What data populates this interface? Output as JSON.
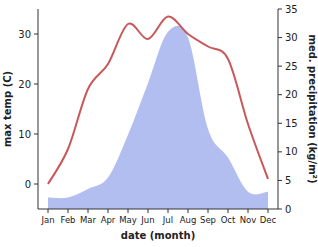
{
  "chart_data": {
    "type": "line",
    "categories": [
      "Jan",
      "Feb",
      "Mar",
      "Apr",
      "May",
      "Jun",
      "Jul",
      "Aug",
      "Sep",
      "Oct",
      "Nov",
      "Dec"
    ],
    "x_label": "date (month)",
    "y_label": "max temp (C)",
    "y2_label": "med. precipitation (kg/m²)",
    "series": [
      {
        "type": "area",
        "axis": "y2",
        "color": "#b3bef0",
        "values": [
          2,
          2,
          3.5,
          5.5,
          13,
          22,
          31,
          30,
          14,
          9,
          3,
          3
        ]
      },
      {
        "type": "line",
        "color": "#c8585a",
        "values": [
          0,
          7,
          19,
          24,
          32,
          29,
          33.5,
          30,
          27.5,
          25,
          12,
          1
        ]
      }
    ],
    "ylim": [
      -5,
      35
    ],
    "yticks": [
      0,
      10,
      20,
      30
    ],
    "y2lim": [
      0,
      35
    ],
    "y2ticks": [
      0,
      5,
      10,
      15,
      20,
      25,
      30,
      35
    ],
    "grid": false
  }
}
